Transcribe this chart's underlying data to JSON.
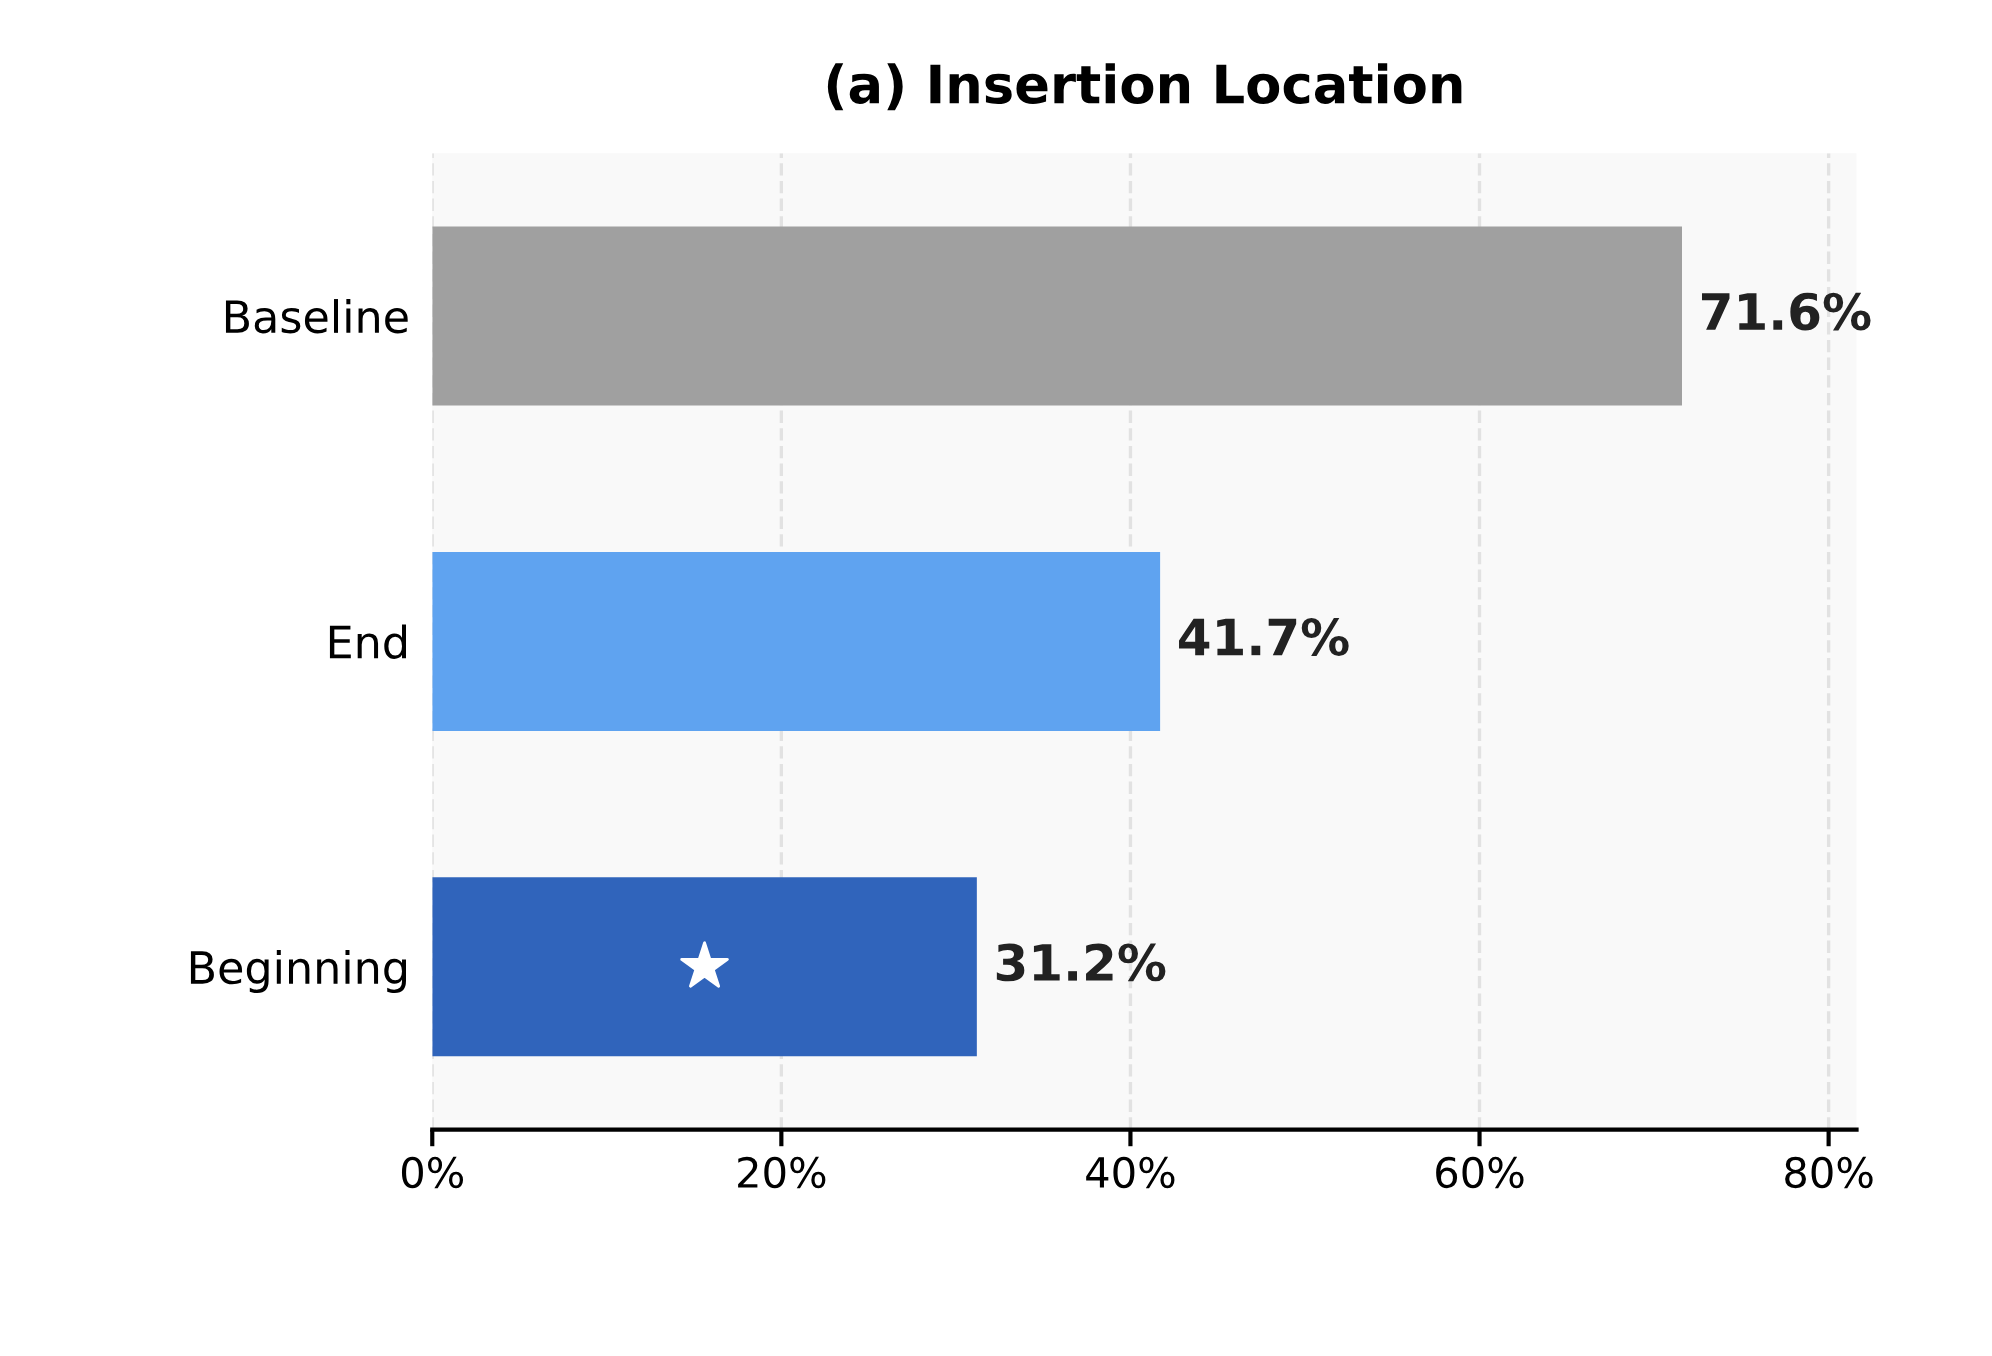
{
  "chart_data": {
    "type": "bar",
    "orientation": "horizontal",
    "title": "(a) Insertion Location",
    "categories": [
      "Baseline",
      "End",
      "Beginning"
    ],
    "values": [
      71.6,
      41.7,
      31.2
    ],
    "colors": [
      "#a0a0a0",
      "#5fa3f0",
      "#3064bb"
    ],
    "value_labels": [
      "71.6%",
      "41.7%",
      "31.2%"
    ],
    "xlim": [
      0,
      81.6
    ],
    "xticks": [
      {
        "value": 0,
        "label": "0%"
      },
      {
        "value": 20,
        "label": "20%"
      },
      {
        "value": 40,
        "label": "40%"
      },
      {
        "value": 60,
        "label": "60%"
      },
      {
        "value": 80,
        "label": "80%"
      }
    ],
    "grid": "x"
  }
}
